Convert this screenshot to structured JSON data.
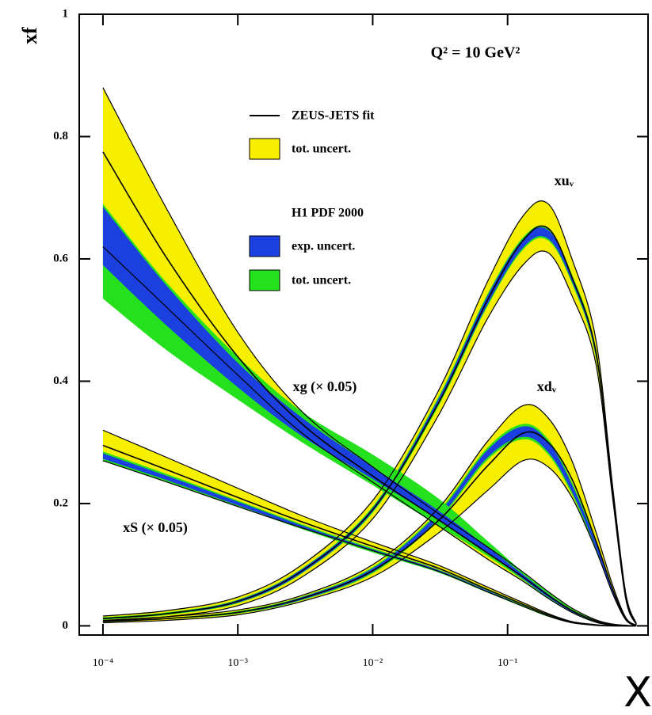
{
  "chart_data": {
    "type": "pdf-bands",
    "title": "Q² = 10 GeV²",
    "x_label": "X",
    "y_label": "xf",
    "log_x": true,
    "xlim": [
      6.67e-05,
      1.1
    ],
    "ylim": [
      -0.015,
      1
    ],
    "xticks": [
      {
        "value": 0.0001,
        "label": "10⁻⁴"
      },
      {
        "value": 0.001,
        "label": "10⁻³"
      },
      {
        "value": 0.01,
        "label": "10⁻²"
      },
      {
        "value": 0.1,
        "label": "10⁻¹"
      }
    ],
    "yticks": [
      0,
      0.2,
      0.4,
      0.6,
      0.8,
      1
    ],
    "legend": {
      "zeus_fit": "ZEUS-JETS fit",
      "zeus_tot": "tot. uncert.",
      "h1_title": "H1 PDF 2000",
      "h1_exp": "exp. uncert.",
      "h1_tot": "tot. uncert."
    },
    "colors": {
      "zeus_tot": "#f7ef00",
      "h1_exp": "#1c3fe0",
      "h1_tot": "#25e01c",
      "line": "#000000"
    },
    "x": [
      0.0001,
      0.0003,
      0.001,
      0.003,
      0.01,
      0.03,
      0.07,
      0.13,
      0.2,
      0.3,
      0.45,
      0.6,
      0.75,
      0.9
    ],
    "series": [
      {
        "name": "xuᵥ",
        "zeus": {
          "central": [
            0.012,
            0.02,
            0.04,
            0.09,
            0.19,
            0.36,
            0.53,
            0.63,
            0.65,
            0.57,
            0.45,
            0.22,
            0.05,
            0.003
          ],
          "lower": [
            0.008,
            0.015,
            0.033,
            0.08,
            0.175,
            0.34,
            0.5,
            0.59,
            0.61,
            0.54,
            0.43,
            0.21,
            0.045,
            0.002
          ],
          "upper": [
            0.016,
            0.025,
            0.047,
            0.1,
            0.205,
            0.38,
            0.56,
            0.67,
            0.69,
            0.6,
            0.47,
            0.23,
            0.055,
            0.004
          ]
        },
        "h1": {
          "tot_lower": [
            0.01,
            0.018,
            0.037,
            0.086,
            0.185,
            0.355,
            0.52,
            0.615,
            0.63,
            0.56,
            0.44,
            0.215,
            0.047,
            0.002
          ],
          "tot_upper": [
            0.014,
            0.022,
            0.043,
            0.094,
            0.195,
            0.37,
            0.54,
            0.635,
            0.65,
            0.575,
            0.455,
            0.225,
            0.052,
            0.003
          ],
          "exp_lower": [
            0.011,
            0.019,
            0.038,
            0.087,
            0.187,
            0.358,
            0.523,
            0.618,
            0.633,
            0.563,
            0.443,
            0.217,
            0.048,
            0.002
          ],
          "exp_upper": [
            0.013,
            0.021,
            0.042,
            0.093,
            0.193,
            0.367,
            0.537,
            0.632,
            0.647,
            0.572,
            0.452,
            0.223,
            0.051,
            0.003
          ]
        }
      },
      {
        "name": "xdᵥ",
        "zeus": {
          "central": [
            0.007,
            0.012,
            0.022,
            0.045,
            0.09,
            0.17,
            0.26,
            0.315,
            0.3,
            0.24,
            0.14,
            0.06,
            0.012,
            0.0005
          ],
          "lower": [
            0.005,
            0.009,
            0.018,
            0.04,
            0.08,
            0.15,
            0.22,
            0.27,
            0.26,
            0.21,
            0.125,
            0.053,
            0.01,
            0
          ],
          "upper": [
            0.009,
            0.015,
            0.026,
            0.05,
            0.1,
            0.19,
            0.3,
            0.36,
            0.34,
            0.27,
            0.155,
            0.067,
            0.014,
            0.001
          ]
        },
        "h1": {
          "tot_lower": [
            0.006,
            0.011,
            0.02,
            0.042,
            0.086,
            0.17,
            0.27,
            0.305,
            0.28,
            0.215,
            0.125,
            0.052,
            0.01,
            0
          ],
          "tot_upper": [
            0.008,
            0.013,
            0.024,
            0.048,
            0.096,
            0.185,
            0.29,
            0.33,
            0.305,
            0.235,
            0.14,
            0.06,
            0.013,
            0.001
          ],
          "exp_lower": [
            0.0065,
            0.0115,
            0.021,
            0.043,
            0.088,
            0.173,
            0.274,
            0.309,
            0.284,
            0.219,
            0.128,
            0.054,
            0.011,
            0
          ],
          "exp_upper": [
            0.0075,
            0.0125,
            0.023,
            0.047,
            0.094,
            0.182,
            0.286,
            0.326,
            0.301,
            0.231,
            0.137,
            0.058,
            0.012,
            0.001
          ]
        }
      },
      {
        "name": "xg (× 0.05)",
        "zeus": {
          "central": [
            0.775,
            0.6,
            0.44,
            0.33,
            0.245,
            0.175,
            0.12,
            0.08,
            0.05,
            0.025,
            0.008,
            0.002,
            0,
            0
          ],
          "lower": [
            0.62,
            0.52,
            0.41,
            0.315,
            0.235,
            0.165,
            0.11,
            0.073,
            0.045,
            0.022,
            0.006,
            0.001,
            0,
            0
          ],
          "upper": [
            0.88,
            0.68,
            0.48,
            0.35,
            0.26,
            0.185,
            0.13,
            0.088,
            0.056,
            0.029,
            0.01,
            0.003,
            0.001,
            0
          ]
        },
        "h1": {
          "tot_lower": [
            0.535,
            0.45,
            0.37,
            0.3,
            0.23,
            0.165,
            0.115,
            0.075,
            0.045,
            0.022,
            0.006,
            0.001,
            0,
            0
          ],
          "tot_upper": [
            0.69,
            0.56,
            0.44,
            0.35,
            0.28,
            0.21,
            0.14,
            0.088,
            0.055,
            0.028,
            0.009,
            0.002,
            0,
            0
          ],
          "exp_lower": [
            0.59,
            0.49,
            0.39,
            0.31,
            0.24,
            0.175,
            0.12,
            0.077,
            0.047,
            0.023,
            0.007,
            0.001,
            0,
            0
          ],
          "exp_upper": [
            0.685,
            0.555,
            0.43,
            0.34,
            0.26,
            0.19,
            0.13,
            0.084,
            0.052,
            0.026,
            0.008,
            0.002,
            0,
            0
          ]
        }
      },
      {
        "name": "xS (× 0.05)",
        "zeus": {
          "central": [
            0.295,
            0.255,
            0.21,
            0.17,
            0.13,
            0.095,
            0.06,
            0.035,
            0.018,
            0.006,
            0.001,
            0,
            0,
            0
          ],
          "lower": [
            0.27,
            0.235,
            0.195,
            0.16,
            0.123,
            0.09,
            0.056,
            0.032,
            0.016,
            0.005,
            0.001,
            0,
            0,
            0
          ],
          "upper": [
            0.32,
            0.275,
            0.225,
            0.18,
            0.137,
            0.1,
            0.064,
            0.038,
            0.02,
            0.007,
            0.002,
            0,
            0,
            0
          ]
        },
        "h1": {
          "tot_lower": [
            0.27,
            0.235,
            0.195,
            0.158,
            0.12,
            0.088,
            0.055,
            0.031,
            0.015,
            0.005,
            0.001,
            0,
            0,
            0
          ],
          "tot_upper": [
            0.285,
            0.248,
            0.205,
            0.166,
            0.127,
            0.093,
            0.059,
            0.034,
            0.017,
            0.006,
            0.001,
            0,
            0,
            0
          ],
          "exp_lower": [
            0.273,
            0.238,
            0.197,
            0.16,
            0.122,
            0.089,
            0.056,
            0.032,
            0.016,
            0.005,
            0.001,
            0,
            0,
            0
          ],
          "exp_upper": [
            0.282,
            0.245,
            0.203,
            0.164,
            0.125,
            0.092,
            0.058,
            0.033,
            0.016,
            0.006,
            0.001,
            0,
            0,
            0
          ]
        }
      }
    ]
  }
}
